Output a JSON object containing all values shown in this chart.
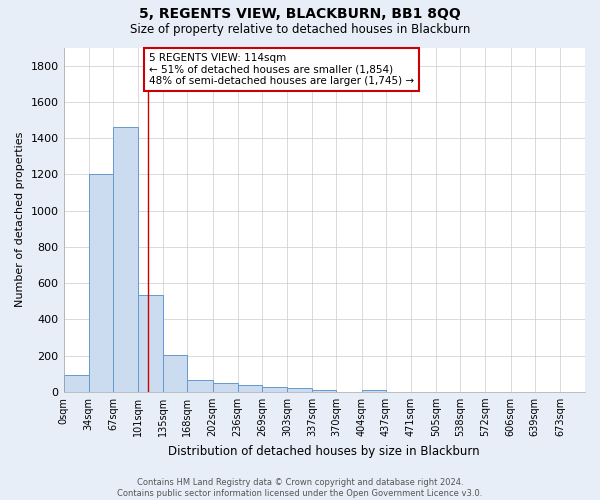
{
  "title": "5, REGENTS VIEW, BLACKBURN, BB1 8QQ",
  "subtitle": "Size of property relative to detached houses in Blackburn",
  "xlabel": "Distribution of detached houses by size in Blackburn",
  "ylabel": "Number of detached properties",
  "bin_labels": [
    "0sqm",
    "34sqm",
    "67sqm",
    "101sqm",
    "135sqm",
    "168sqm",
    "202sqm",
    "236sqm",
    "269sqm",
    "303sqm",
    "337sqm",
    "370sqm",
    "404sqm",
    "437sqm",
    "471sqm",
    "505sqm",
    "538sqm",
    "572sqm",
    "606sqm",
    "639sqm",
    "673sqm"
  ],
  "bar_heights": [
    90,
    1200,
    1460,
    535,
    205,
    65,
    50,
    40,
    25,
    20,
    10,
    0,
    10,
    0,
    0,
    0,
    0,
    0,
    0,
    0
  ],
  "bar_color": "#ccdcf0",
  "bar_edge_color": "#6699cc",
  "property_line_x": 114,
  "property_line_color": "#cc0000",
  "annotation_text": "5 REGENTS VIEW: 114sqm\n← 51% of detached houses are smaller (1,854)\n48% of semi-detached houses are larger (1,745) →",
  "annotation_box_color": "#ffffff",
  "annotation_box_edge_color": "#cc0000",
  "grid_color": "#cccccc",
  "plot_bg_color": "#ffffff",
  "fig_bg_color": "#e8eef8",
  "ylim": [
    0,
    1900
  ],
  "footnote": "Contains HM Land Registry data © Crown copyright and database right 2024.\nContains public sector information licensed under the Open Government Licence v3.0.",
  "label_values": [
    0,
    34,
    67,
    101,
    135,
    168,
    202,
    236,
    269,
    303,
    337,
    370,
    404,
    437,
    471,
    505,
    538,
    572,
    606,
    639,
    673
  ]
}
